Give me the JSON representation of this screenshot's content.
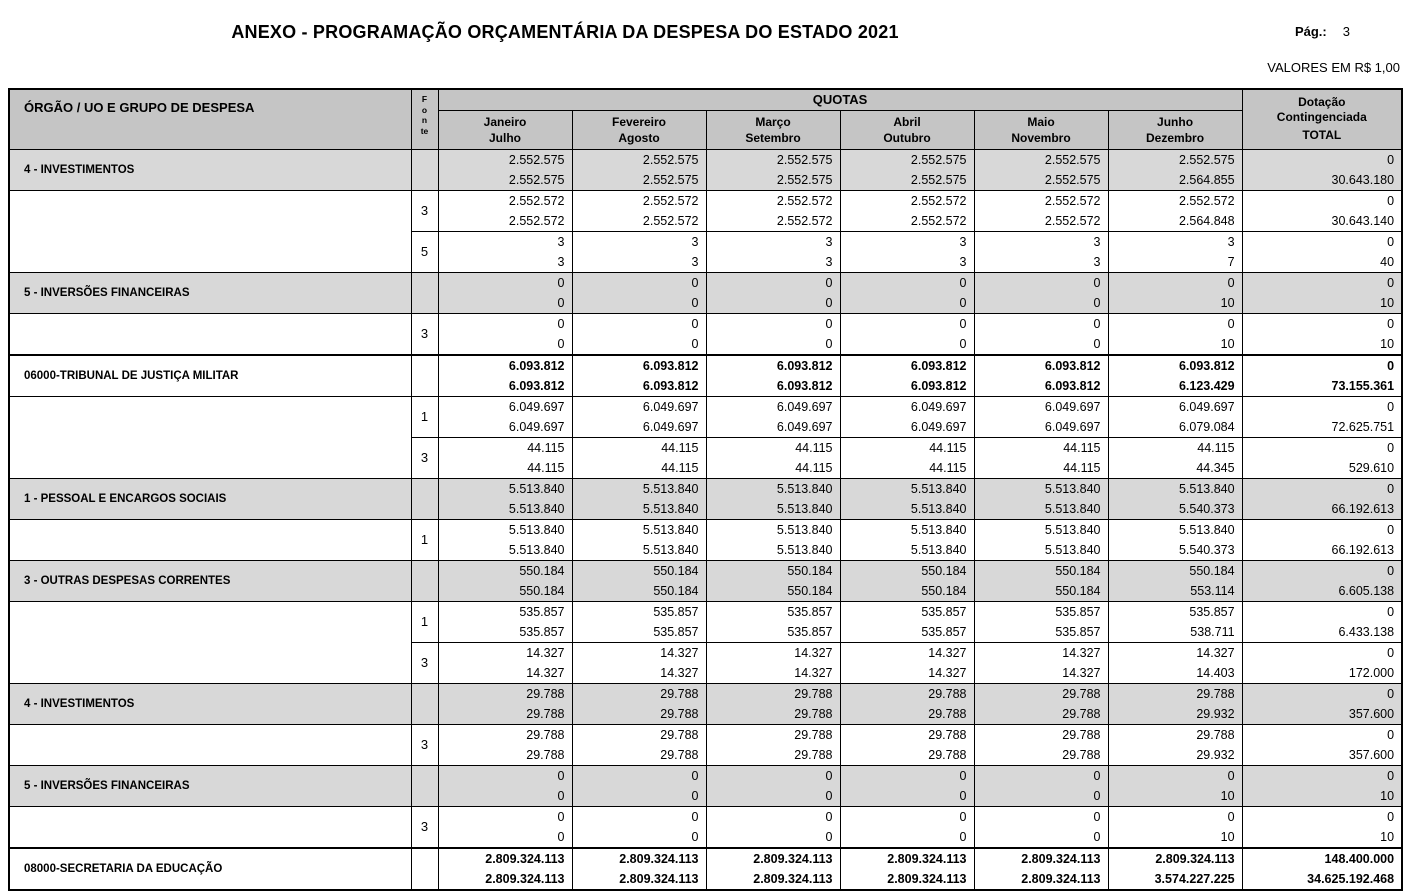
{
  "page": {
    "title": "ANEXO - PROGRAMAÇÃO ORÇAMENTÁRIA DA DESPESA DO ESTADO 2021",
    "page_label": "Pág.:",
    "page_number": "3",
    "values_note": "VALORES EM R$ 1,00"
  },
  "table": {
    "org_header": "ÓRGÃO / UO E GRUPO DE DESPESA",
    "fonte_header": "Fonte",
    "quotas_header": "QUOTAS",
    "month_columns": [
      [
        "Janeiro",
        "Julho"
      ],
      [
        "Fevereiro",
        "Agosto"
      ],
      [
        "Março",
        "Setembro"
      ],
      [
        "Abril",
        "Outubro"
      ],
      [
        "Maio",
        "Novembro"
      ],
      [
        "Junho",
        "Dezembro"
      ]
    ],
    "total_header": [
      "Dotação",
      "Contingenciada",
      "TOTAL"
    ],
    "rows": [
      {
        "type": "group",
        "label": "4 - INVESTIMENTOS",
        "fonte": "",
        "line1": [
          "2.552.575",
          "2.552.575",
          "2.552.575",
          "2.552.575",
          "2.552.575",
          "2.552.575",
          "0"
        ],
        "line2": [
          "2.552.575",
          "2.552.575",
          "2.552.575",
          "2.552.575",
          "2.552.575",
          "2.564.855",
          "30.643.180"
        ]
      },
      {
        "type": "fonte",
        "label": "",
        "fonte": "3",
        "line1": [
          "2.552.572",
          "2.552.572",
          "2.552.572",
          "2.552.572",
          "2.552.572",
          "2.552.572",
          "0"
        ],
        "line2": [
          "2.552.572",
          "2.552.572",
          "2.552.572",
          "2.552.572",
          "2.552.572",
          "2.564.848",
          "30.643.140"
        ]
      },
      {
        "type": "fonte",
        "label": "",
        "fonte": "5",
        "line1": [
          "3",
          "3",
          "3",
          "3",
          "3",
          "3",
          "0"
        ],
        "line2": [
          "3",
          "3",
          "3",
          "3",
          "3",
          "7",
          "40"
        ]
      },
      {
        "type": "group",
        "label": "5 - INVERSÕES FINANCEIRAS",
        "fonte": "",
        "line1": [
          "0",
          "0",
          "0",
          "0",
          "0",
          "0",
          "0"
        ],
        "line2": [
          "0",
          "0",
          "0",
          "0",
          "0",
          "10",
          "10"
        ]
      },
      {
        "type": "fonte",
        "label": "",
        "fonte": "3",
        "line1": [
          "0",
          "0",
          "0",
          "0",
          "0",
          "0",
          "0"
        ],
        "line2": [
          "0",
          "0",
          "0",
          "0",
          "0",
          "10",
          "10"
        ]
      },
      {
        "type": "org",
        "label": "06000-TRIBUNAL DE JUSTIÇA MILITAR",
        "fonte": "",
        "line1": [
          "6.093.812",
          "6.093.812",
          "6.093.812",
          "6.093.812",
          "6.093.812",
          "6.093.812",
          "0"
        ],
        "line2": [
          "6.093.812",
          "6.093.812",
          "6.093.812",
          "6.093.812",
          "6.093.812",
          "6.123.429",
          "73.155.361"
        ]
      },
      {
        "type": "fonte",
        "label": "",
        "fonte": "1",
        "line1": [
          "6.049.697",
          "6.049.697",
          "6.049.697",
          "6.049.697",
          "6.049.697",
          "6.049.697",
          "0"
        ],
        "line2": [
          "6.049.697",
          "6.049.697",
          "6.049.697",
          "6.049.697",
          "6.049.697",
          "6.079.084",
          "72.625.751"
        ]
      },
      {
        "type": "fonte",
        "label": "",
        "fonte": "3",
        "line1": [
          "44.115",
          "44.115",
          "44.115",
          "44.115",
          "44.115",
          "44.115",
          "0"
        ],
        "line2": [
          "44.115",
          "44.115",
          "44.115",
          "44.115",
          "44.115",
          "44.345",
          "529.610"
        ]
      },
      {
        "type": "group",
        "label": "1 - PESSOAL E ENCARGOS SOCIAIS",
        "fonte": "",
        "line1": [
          "5.513.840",
          "5.513.840",
          "5.513.840",
          "5.513.840",
          "5.513.840",
          "5.513.840",
          "0"
        ],
        "line2": [
          "5.513.840",
          "5.513.840",
          "5.513.840",
          "5.513.840",
          "5.513.840",
          "5.540.373",
          "66.192.613"
        ]
      },
      {
        "type": "fonte",
        "label": "",
        "fonte": "1",
        "line1": [
          "5.513.840",
          "5.513.840",
          "5.513.840",
          "5.513.840",
          "5.513.840",
          "5.513.840",
          "0"
        ],
        "line2": [
          "5.513.840",
          "5.513.840",
          "5.513.840",
          "5.513.840",
          "5.513.840",
          "5.540.373",
          "66.192.613"
        ]
      },
      {
        "type": "group",
        "label": "3 - OUTRAS DESPESAS CORRENTES",
        "fonte": "",
        "line1": [
          "550.184",
          "550.184",
          "550.184",
          "550.184",
          "550.184",
          "550.184",
          "0"
        ],
        "line2": [
          "550.184",
          "550.184",
          "550.184",
          "550.184",
          "550.184",
          "553.114",
          "6.605.138"
        ]
      },
      {
        "type": "fonte",
        "label": "",
        "fonte": "1",
        "line1": [
          "535.857",
          "535.857",
          "535.857",
          "535.857",
          "535.857",
          "535.857",
          "0"
        ],
        "line2": [
          "535.857",
          "535.857",
          "535.857",
          "535.857",
          "535.857",
          "538.711",
          "6.433.138"
        ]
      },
      {
        "type": "fonte",
        "label": "",
        "fonte": "3",
        "line1": [
          "14.327",
          "14.327",
          "14.327",
          "14.327",
          "14.327",
          "14.327",
          "0"
        ],
        "line2": [
          "14.327",
          "14.327",
          "14.327",
          "14.327",
          "14.327",
          "14.403",
          "172.000"
        ]
      },
      {
        "type": "group",
        "label": "4 - INVESTIMENTOS",
        "fonte": "",
        "line1": [
          "29.788",
          "29.788",
          "29.788",
          "29.788",
          "29.788",
          "29.788",
          "0"
        ],
        "line2": [
          "29.788",
          "29.788",
          "29.788",
          "29.788",
          "29.788",
          "29.932",
          "357.600"
        ]
      },
      {
        "type": "fonte",
        "label": "",
        "fonte": "3",
        "line1": [
          "29.788",
          "29.788",
          "29.788",
          "29.788",
          "29.788",
          "29.788",
          "0"
        ],
        "line2": [
          "29.788",
          "29.788",
          "29.788",
          "29.788",
          "29.788",
          "29.932",
          "357.600"
        ]
      },
      {
        "type": "group",
        "label": "5 - INVERSÕES FINANCEIRAS",
        "fonte": "",
        "line1": [
          "0",
          "0",
          "0",
          "0",
          "0",
          "0",
          "0"
        ],
        "line2": [
          "0",
          "0",
          "0",
          "0",
          "0",
          "10",
          "10"
        ]
      },
      {
        "type": "fonte",
        "label": "",
        "fonte": "3",
        "line1": [
          "0",
          "0",
          "0",
          "0",
          "0",
          "0",
          "0"
        ],
        "line2": [
          "0",
          "0",
          "0",
          "0",
          "0",
          "10",
          "10"
        ]
      },
      {
        "type": "org",
        "label": "08000-SECRETARIA DA EDUCAÇÃO",
        "fonte": "",
        "line1": [
          "2.809.324.113",
          "2.809.324.113",
          "2.809.324.113",
          "2.809.324.113",
          "2.809.324.113",
          "2.809.324.113",
          "148.400.000"
        ],
        "line2": [
          "2.809.324.113",
          "2.809.324.113",
          "2.809.324.113",
          "2.809.324.113",
          "2.809.324.113",
          "3.574.227.225",
          "34.625.192.468"
        ]
      }
    ]
  }
}
